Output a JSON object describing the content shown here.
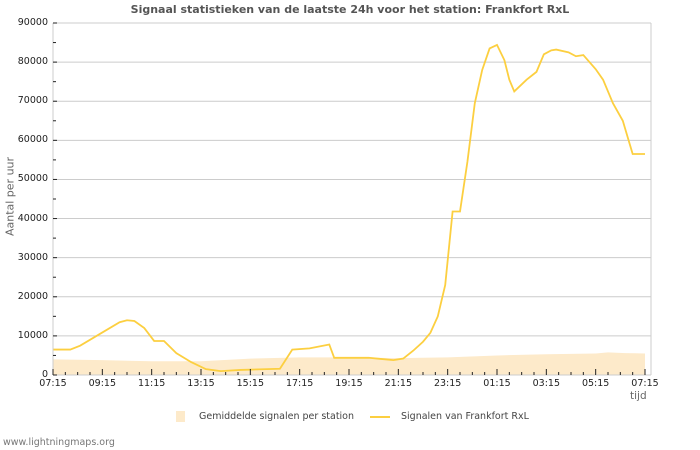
{
  "chart_data": {
    "type": "line",
    "title": "Signaal statistieken van de laatste 24h voor het station: Frankfort RxL",
    "xlabel": "tijd",
    "ylabel": "Aantal per uur",
    "ylim": [
      0,
      90000
    ],
    "grid": true,
    "legend_position": "bottom",
    "x_ticks": [
      "07:15",
      "09:15",
      "11:15",
      "13:15",
      "15:15",
      "17:15",
      "19:15",
      "21:15",
      "23:15",
      "01:15",
      "03:15",
      "05:15",
      "07:15"
    ],
    "y_ticks": [
      0,
      10000,
      20000,
      30000,
      40000,
      50000,
      60000,
      70000,
      80000,
      90000
    ],
    "series": [
      {
        "name": "Signalen van Frankfort RxL",
        "kind": "line",
        "color": "#fccf40",
        "hours": [
          0,
          0.7,
          1.1,
          1.9,
          2.7,
          3.0,
          3.3,
          3.7,
          4.1,
          4.5,
          5.0,
          5.6,
          6.2,
          6.8,
          7.6,
          9.2,
          9.7,
          10.4,
          11.2,
          11.4,
          12.8,
          13.8,
          14.2,
          14.6,
          15.0,
          15.3,
          15.6,
          15.9,
          16.2,
          16.5,
          16.8,
          17.1,
          17.4,
          17.7,
          18.0,
          18.3,
          18.5,
          18.7,
          19.2,
          19.6,
          19.9,
          20.2,
          20.4,
          20.9,
          21.2,
          21.5,
          22.0,
          22.3,
          22.7,
          23.1,
          23.5,
          24.0
        ],
        "values": [
          6500,
          6500,
          7500,
          10500,
          13500,
          14000,
          13800,
          12000,
          8700,
          8700,
          5600,
          3300,
          1500,
          1000,
          1300,
          1600,
          6500,
          6800,
          7800,
          4400,
          4400,
          3800,
          4200,
          6200,
          8500,
          10800,
          15000,
          23000,
          41800,
          41800,
          54500,
          69500,
          78000,
          83500,
          84400,
          80500,
          75500,
          72500,
          75500,
          77500,
          82000,
          83000,
          83200,
          82500,
          81500,
          81800,
          78200,
          75500,
          69500,
          65000,
          56500,
          56500
        ]
      },
      {
        "name": "Gemiddelde signalen per station",
        "kind": "area",
        "color": "#fdeaca",
        "hours": [
          0,
          2,
          4,
          6,
          8,
          10,
          12,
          14,
          16,
          18,
          20,
          22,
          22.5,
          23.2,
          24
        ],
        "values": [
          4000,
          3800,
          3500,
          3500,
          4200,
          4500,
          4500,
          4300,
          4500,
          5000,
          5300,
          5500,
          5800,
          5600,
          5500
        ]
      }
    ]
  },
  "legend": {
    "area_label": "Gemiddelde signalen per station",
    "line_label": "Signalen van Frankfort RxL"
  },
  "footer": "www.lightningmaps.org"
}
